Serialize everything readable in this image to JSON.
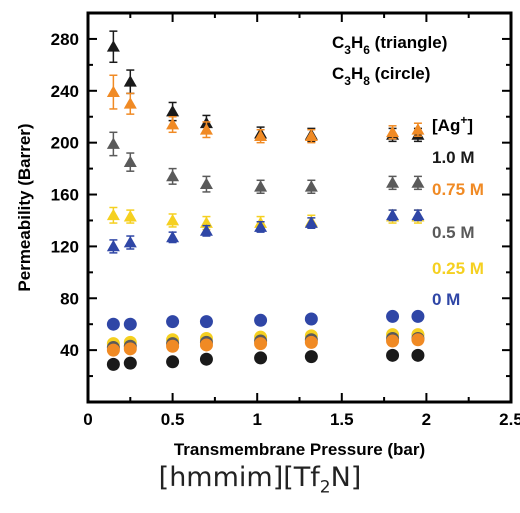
{
  "chart_data": {
    "type": "scatter",
    "xlabel": "Transmembrane Pressure (bar)",
    "ylabel": "Permeability (Barrer)",
    "xlim": [
      0,
      2.5
    ],
    "ylim": [
      0,
      300
    ],
    "x_ticks": [
      "0",
      "0.5",
      "1",
      "1.5",
      "2",
      "2.5"
    ],
    "y_ticks": [
      "40",
      "80",
      "120",
      "160",
      "200",
      "240",
      "280"
    ],
    "grid": false,
    "marker_legend": {
      "triangle": {
        "base": "C",
        "sub1": "3",
        "mid": "H",
        "sub2": "6",
        "tail": " (triangle)"
      },
      "circle": {
        "base": "C",
        "sub1": "3",
        "mid": "H",
        "sub2": "8",
        "tail": " (circle)"
      }
    },
    "legend_title": {
      "base": "[Ag",
      "sup": "+",
      "tail": "]"
    },
    "legend_entries": [
      {
        "label": "1.0 M",
        "color": "#1a1a1a"
      },
      {
        "label": "0.75 M",
        "color": "#f08a24"
      },
      {
        "label": "0.5 M",
        "color": "#5a5a5a"
      },
      {
        "label": "0.25 M",
        "color": "#f5d020"
      },
      {
        "label": "0 M",
        "color": "#2f46a6"
      }
    ],
    "series": [
      {
        "name": "1.0 M",
        "marker": "triangle",
        "color": "#1a1a1a",
        "x": [
          0.15,
          0.25,
          0.5,
          0.7,
          1.02,
          1.32,
          1.8,
          1.95
        ],
        "y": [
          274,
          247,
          224,
          215,
          207,
          206,
          206,
          206
        ],
        "err": [
          12,
          9,
          7,
          6,
          5,
          5,
          5,
          5
        ]
      },
      {
        "name": "0.75 M",
        "marker": "triangle",
        "color": "#f08a24",
        "x": [
          0.15,
          0.25,
          0.5,
          0.7,
          1.02,
          1.32,
          1.8,
          1.95
        ],
        "y": [
          239,
          230,
          214,
          210,
          205,
          205,
          208,
          210
        ],
        "err": [
          13,
          8,
          6,
          6,
          5,
          5,
          5,
          5
        ]
      },
      {
        "name": "0.5 M",
        "marker": "triangle",
        "color": "#5a5a5a",
        "x": [
          0.15,
          0.25,
          0.5,
          0.7,
          1.02,
          1.32,
          1.8,
          1.95
        ],
        "y": [
          199,
          185,
          174,
          168,
          166,
          166,
          169,
          169
        ],
        "err": [
          9,
          7,
          6,
          6,
          5,
          5,
          5,
          5
        ]
      },
      {
        "name": "0.25 M",
        "marker": "triangle",
        "color": "#f5d020",
        "x": [
          0.15,
          0.25,
          0.5,
          0.7,
          1.02,
          1.32,
          1.8,
          1.95
        ],
        "y": [
          144,
          143,
          140,
          138,
          138,
          139,
          143,
          143
        ],
        "err": [
          6,
          5,
          5,
          5,
          5,
          5,
          5,
          5
        ]
      },
      {
        "name": "0 M",
        "marker": "triangle",
        "color": "#2f46a6",
        "x": [
          0.15,
          0.25,
          0.5,
          0.7,
          1.02,
          1.32,
          1.8,
          1.95
        ],
        "y": [
          120,
          123,
          127,
          132,
          135,
          138,
          144,
          144
        ],
        "err": [
          5,
          5,
          4,
          4,
          4,
          4,
          4,
          4
        ]
      },
      {
        "name": "0 M",
        "marker": "circle",
        "color": "#2f46a6",
        "x": [
          0.15,
          0.25,
          0.5,
          0.7,
          1.02,
          1.32,
          1.8,
          1.95
        ],
        "y": [
          60,
          60,
          62,
          62,
          63,
          64,
          66,
          66
        ]
      },
      {
        "name": "0.25 M",
        "marker": "circle",
        "color": "#f5d020",
        "x": [
          0.15,
          0.25,
          0.5,
          0.7,
          1.02,
          1.32,
          1.8,
          1.95
        ],
        "y": [
          45,
          46,
          48,
          49,
          50,
          51,
          52,
          52
        ]
      },
      {
        "name": "0.5 M",
        "marker": "circle",
        "color": "#5a5a5a",
        "x": [
          0.15,
          0.25,
          0.5,
          0.7,
          1.02,
          1.32,
          1.8,
          1.95
        ],
        "y": [
          42,
          43,
          45,
          46,
          47,
          48,
          49,
          49
        ]
      },
      {
        "name": "0.75 M",
        "marker": "circle",
        "color": "#f08a24",
        "x": [
          0.15,
          0.25,
          0.5,
          0.7,
          1.02,
          1.32,
          1.8,
          1.95
        ],
        "y": [
          40,
          41,
          43,
          44,
          45,
          46,
          47,
          48
        ]
      },
      {
        "name": "1.0 M",
        "marker": "circle",
        "color": "#1a1a1a",
        "x": [
          0.15,
          0.25,
          0.5,
          0.7,
          1.02,
          1.32,
          1.8,
          1.95
        ],
        "y": [
          29,
          30,
          31,
          33,
          34,
          35,
          36,
          36
        ]
      }
    ]
  },
  "caption": {
    "base": "[hmmim][Tf",
    "sub": "2",
    "tail": "N]"
  }
}
